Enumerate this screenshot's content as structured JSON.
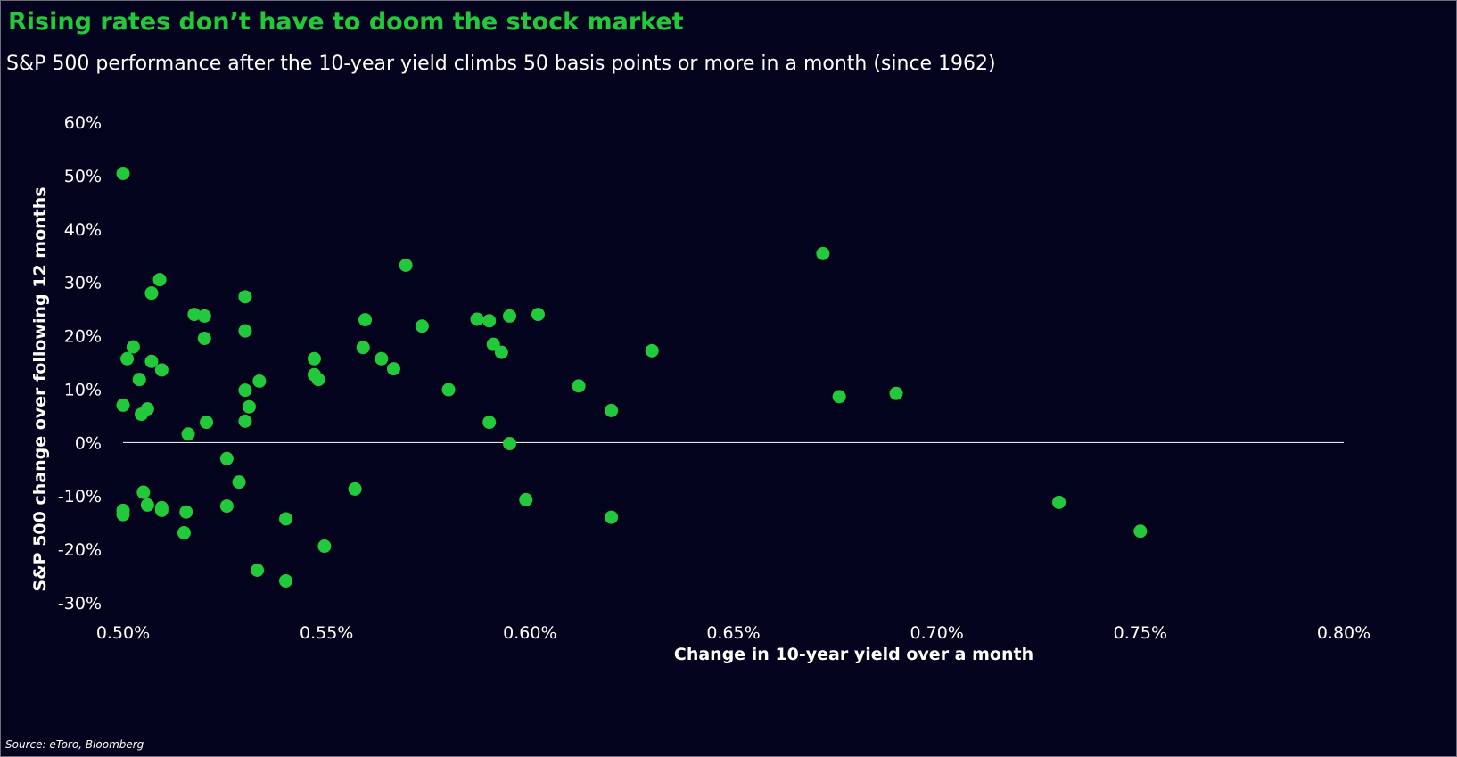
{
  "header": {
    "title": "Rising rates don’t have to doom the stock market",
    "subtitle": "S&P 500 performance after the 10-year yield climbs 50 basis points or more in a month (since 1962)"
  },
  "footer": {
    "source": "Source: eToro, Bloomberg"
  },
  "colors": {
    "background": "#03031e",
    "title": "#22c93a",
    "points": "#22c93a",
    "text": "#ffffff",
    "zero_line": "#ffffff"
  },
  "chart_data": {
    "type": "scatter",
    "xlabel": "Change in 10-year yield over a month",
    "ylabel": "S&P 500 change over following 12 months",
    "xlim": [
      0.5,
      0.8
    ],
    "ylim": [
      -30,
      60
    ],
    "x_ticks": [
      0.5,
      0.55,
      0.6,
      0.65,
      0.7,
      0.75,
      0.8
    ],
    "x_tick_labels": [
      "0.50%",
      "0.55%",
      "0.60%",
      "0.65%",
      "0.70%",
      "0.75%",
      "0.80%"
    ],
    "y_ticks": [
      60,
      50,
      40,
      30,
      20,
      10,
      0,
      -10,
      -20,
      -30
    ],
    "y_tick_labels": [
      "60%",
      "50%",
      "40%",
      "30%",
      "20%",
      "10%",
      "0%",
      "-10%",
      "-20%",
      "-30%"
    ],
    "grid": false,
    "zero_line": true,
    "points": [
      [
        0.5,
        50.4
      ],
      [
        0.5,
        7.0
      ],
      [
        0.5,
        -12.7
      ],
      [
        0.5,
        -13.5
      ],
      [
        0.501,
        15.7
      ],
      [
        0.5025,
        17.9
      ],
      [
        0.504,
        11.8
      ],
      [
        0.5045,
        5.3
      ],
      [
        0.505,
        -9.3
      ],
      [
        0.506,
        6.3
      ],
      [
        0.506,
        -11.7
      ],
      [
        0.507,
        28.0
      ],
      [
        0.507,
        15.2
      ],
      [
        0.509,
        30.5
      ],
      [
        0.5095,
        13.6
      ],
      [
        0.5095,
        -12.2
      ],
      [
        0.5095,
        -12.7
      ],
      [
        0.515,
        -16.9
      ],
      [
        0.5155,
        -13.0
      ],
      [
        0.516,
        1.6
      ],
      [
        0.5175,
        24.0
      ],
      [
        0.52,
        23.7
      ],
      [
        0.52,
        19.5
      ],
      [
        0.5205,
        3.8
      ],
      [
        0.5255,
        -3.0
      ],
      [
        0.5255,
        -11.9
      ],
      [
        0.5285,
        -7.4
      ],
      [
        0.53,
        27.3
      ],
      [
        0.53,
        20.9
      ],
      [
        0.53,
        9.8
      ],
      [
        0.53,
        4.0
      ],
      [
        0.531,
        6.7
      ],
      [
        0.533,
        -23.9
      ],
      [
        0.5335,
        11.5
      ],
      [
        0.54,
        -14.3
      ],
      [
        0.54,
        -25.9
      ],
      [
        0.547,
        15.7
      ],
      [
        0.547,
        12.7
      ],
      [
        0.548,
        11.8
      ],
      [
        0.5495,
        -19.4
      ],
      [
        0.557,
        -8.7
      ],
      [
        0.559,
        17.8
      ],
      [
        0.5595,
        23.0
      ],
      [
        0.5635,
        15.7
      ],
      [
        0.5665,
        13.8
      ],
      [
        0.5695,
        33.2
      ],
      [
        0.5735,
        21.8
      ],
      [
        0.58,
        9.9
      ],
      [
        0.587,
        23.1
      ],
      [
        0.59,
        22.8
      ],
      [
        0.59,
        3.8
      ],
      [
        0.591,
        18.4
      ],
      [
        0.593,
        16.9
      ],
      [
        0.595,
        23.7
      ],
      [
        0.595,
        -0.2
      ],
      [
        0.599,
        -10.7
      ],
      [
        0.602,
        24.0
      ],
      [
        0.612,
        10.6
      ],
      [
        0.62,
        6.0
      ],
      [
        0.62,
        -14.0
      ],
      [
        0.63,
        17.2
      ],
      [
        0.672,
        35.4
      ],
      [
        0.676,
        8.6
      ],
      [
        0.69,
        9.2
      ],
      [
        0.73,
        -11.2
      ],
      [
        0.75,
        -16.6
      ]
    ]
  }
}
